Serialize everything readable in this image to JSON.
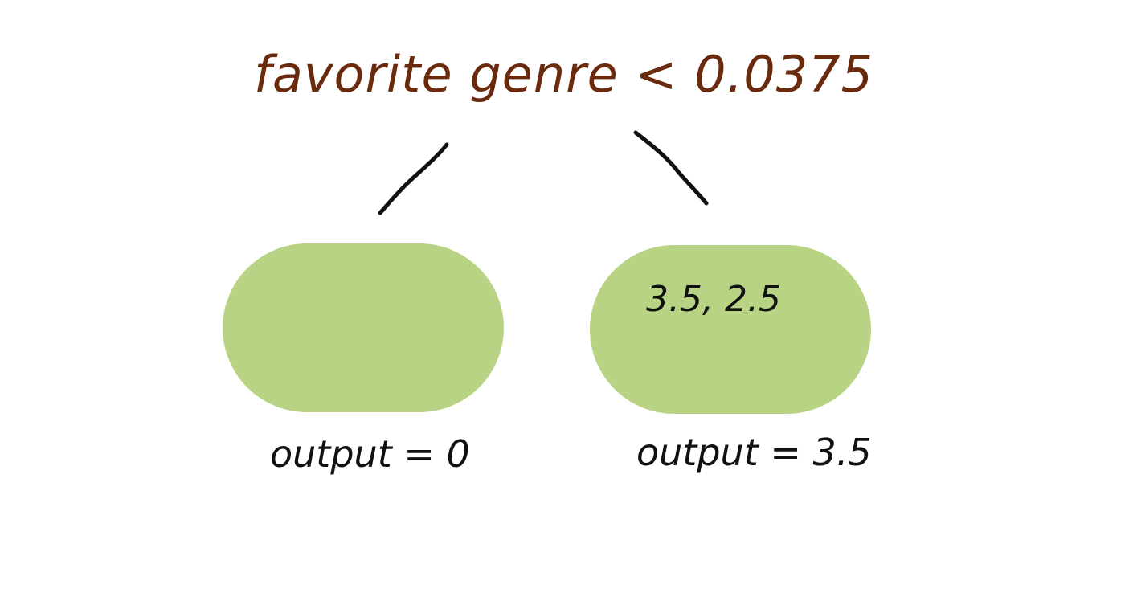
{
  "tree": {
    "root": {
      "condition": "favorite genre < 0.0375",
      "color": "#6a2a0e"
    },
    "leaves": [
      {
        "values": "",
        "output": "output = 0"
      },
      {
        "values": "3.5, 2.5",
        "output": "output = 3.5"
      }
    ],
    "leaf_color": "#b8d384",
    "edge_color": "#111111"
  }
}
